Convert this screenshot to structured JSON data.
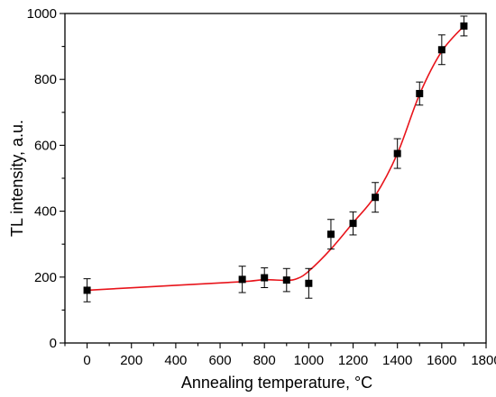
{
  "chart_data": {
    "type": "scatter",
    "title": "",
    "xlabel": "Annealing temperature, °C",
    "ylabel": "TL intensity, a.u.",
    "xlim": [
      -100,
      1800
    ],
    "ylim": [
      0,
      1000
    ],
    "x_ticks": [
      0,
      200,
      400,
      600,
      800,
      1000,
      1200,
      1400,
      1600,
      1800
    ],
    "y_ticks": [
      0,
      200,
      400,
      600,
      800,
      1000
    ],
    "x_tick_labels": [
      "0",
      "200",
      "400",
      "600",
      "800",
      "1000",
      "1200",
      "1400",
      "1600",
      "1800"
    ],
    "y_tick_labels": [
      "0",
      "200",
      "400",
      "600",
      "800",
      "1000"
    ],
    "grid": false,
    "legend": "none",
    "series": [
      {
        "marker": "square",
        "color": "#000000",
        "x": [
          0,
          700,
          800,
          900,
          1000,
          1100,
          1200,
          1300,
          1400,
          1500,
          1600,
          1700
        ],
        "y": [
          160,
          193,
          198,
          191,
          181,
          330,
          363,
          442,
          575,
          757,
          890,
          962
        ],
        "error": [
          35,
          40,
          30,
          35,
          45,
          45,
          35,
          45,
          45,
          35,
          45,
          30
        ]
      }
    ],
    "fit_line": {
      "color": "#e8141b",
      "x": [
        0,
        400,
        700,
        800,
        900,
        950,
        1000,
        1100,
        1200,
        1300,
        1400,
        1500,
        1600,
        1700
      ],
      "y": [
        160,
        175,
        186,
        192,
        190,
        196,
        218,
        285,
        365,
        447,
        575,
        755,
        885,
        962
      ]
    }
  }
}
